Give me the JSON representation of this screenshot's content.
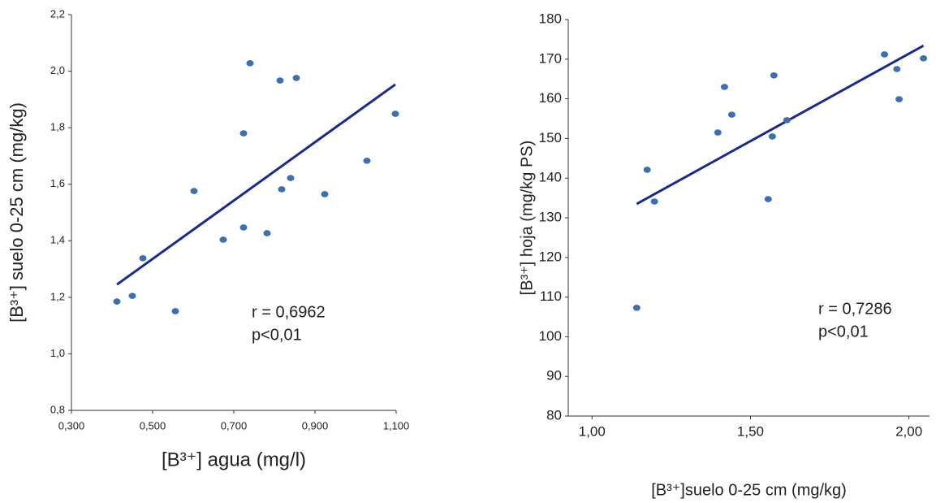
{
  "chart_data": [
    {
      "type": "scatter",
      "x_label": "[B³⁺] agua (mg/l)",
      "y_label": "[B³⁺] suelo 0-25 cm (mg/kg)",
      "annotations": [
        "r = 0,6962",
        "p<0,01"
      ],
      "color": "#3d6fb0",
      "trend_color": "#1a2a8a",
      "x": [
        0.412,
        0.45,
        0.476,
        0.556,
        0.602,
        0.674,
        0.724,
        0.724,
        0.74,
        0.782,
        0.814,
        0.818,
        0.84,
        0.854,
        0.924,
        1.028,
        1.098
      ],
      "values": [
        1.185,
        1.205,
        1.338,
        1.151,
        1.576,
        1.404,
        1.78,
        1.447,
        2.028,
        1.427,
        1.967,
        1.582,
        1.622,
        1.976,
        1.565,
        1.683,
        1.849
      ],
      "trendline": {
        "x": [
          0.412,
          1.098
        ],
        "y": [
          1.245,
          1.953
        ]
      },
      "xlim": [
        0.3,
        1.1
      ],
      "xticks": [
        {
          "value": 0.3,
          "label": "0,300"
        },
        {
          "value": 0.5,
          "label": "0,500"
        },
        {
          "value": 0.7,
          "label": "0,700"
        },
        {
          "value": 0.9,
          "label": "0,900"
        },
        {
          "value": 1.1,
          "label": "1,100"
        }
      ],
      "ylim": [
        0.8,
        2.2
      ],
      "yticks": [
        {
          "value": 0.8,
          "label": "0,8"
        },
        {
          "value": 1.0,
          "label": "1,0"
        },
        {
          "value": 1.2,
          "label": "1,2"
        },
        {
          "value": 1.4,
          "label": "1,4"
        },
        {
          "value": 1.6,
          "label": "1,6"
        },
        {
          "value": 1.8,
          "label": "1,8"
        },
        {
          "value": 2.0,
          "label": "2,0"
        },
        {
          "value": 2.2,
          "label": "2,2"
        }
      ]
    },
    {
      "type": "scatter",
      "x_label": "[B³⁺]suelo 0-25 cm (mg/kg)",
      "y_label": "[B³⁺] hoja (mg/kg PS)",
      "annotations": [
        "r = 0,7286",
        "p<0,01"
      ],
      "color": "#3d6fb0",
      "trend_color": "#1a2a8a",
      "x": [
        1.141,
        1.174,
        1.197,
        1.397,
        1.418,
        1.441,
        1.556,
        1.569,
        1.574,
        1.615,
        1.923,
        1.962,
        1.969,
        2.046
      ],
      "values": [
        107.3,
        142.1,
        134.1,
        151.5,
        163.0,
        156.0,
        134.7,
        150.5,
        165.9,
        154.6,
        171.2,
        167.5,
        159.9,
        170.2
      ],
      "trendline": {
        "x": [
          1.141,
          2.046
        ],
        "y": [
          133.5,
          173.4
        ]
      },
      "xlim": [
        0.925,
        2.065
      ],
      "xticks": [
        {
          "value": 1.0,
          "label": "1,00"
        },
        {
          "value": 1.5,
          "label": "1,50"
        },
        {
          "value": 2.0,
          "label": "2,00"
        }
      ],
      "ylim": [
        80,
        180
      ],
      "yticks": [
        80,
        90,
        100,
        110,
        120,
        130,
        140,
        150,
        160,
        170,
        180
      ]
    }
  ]
}
